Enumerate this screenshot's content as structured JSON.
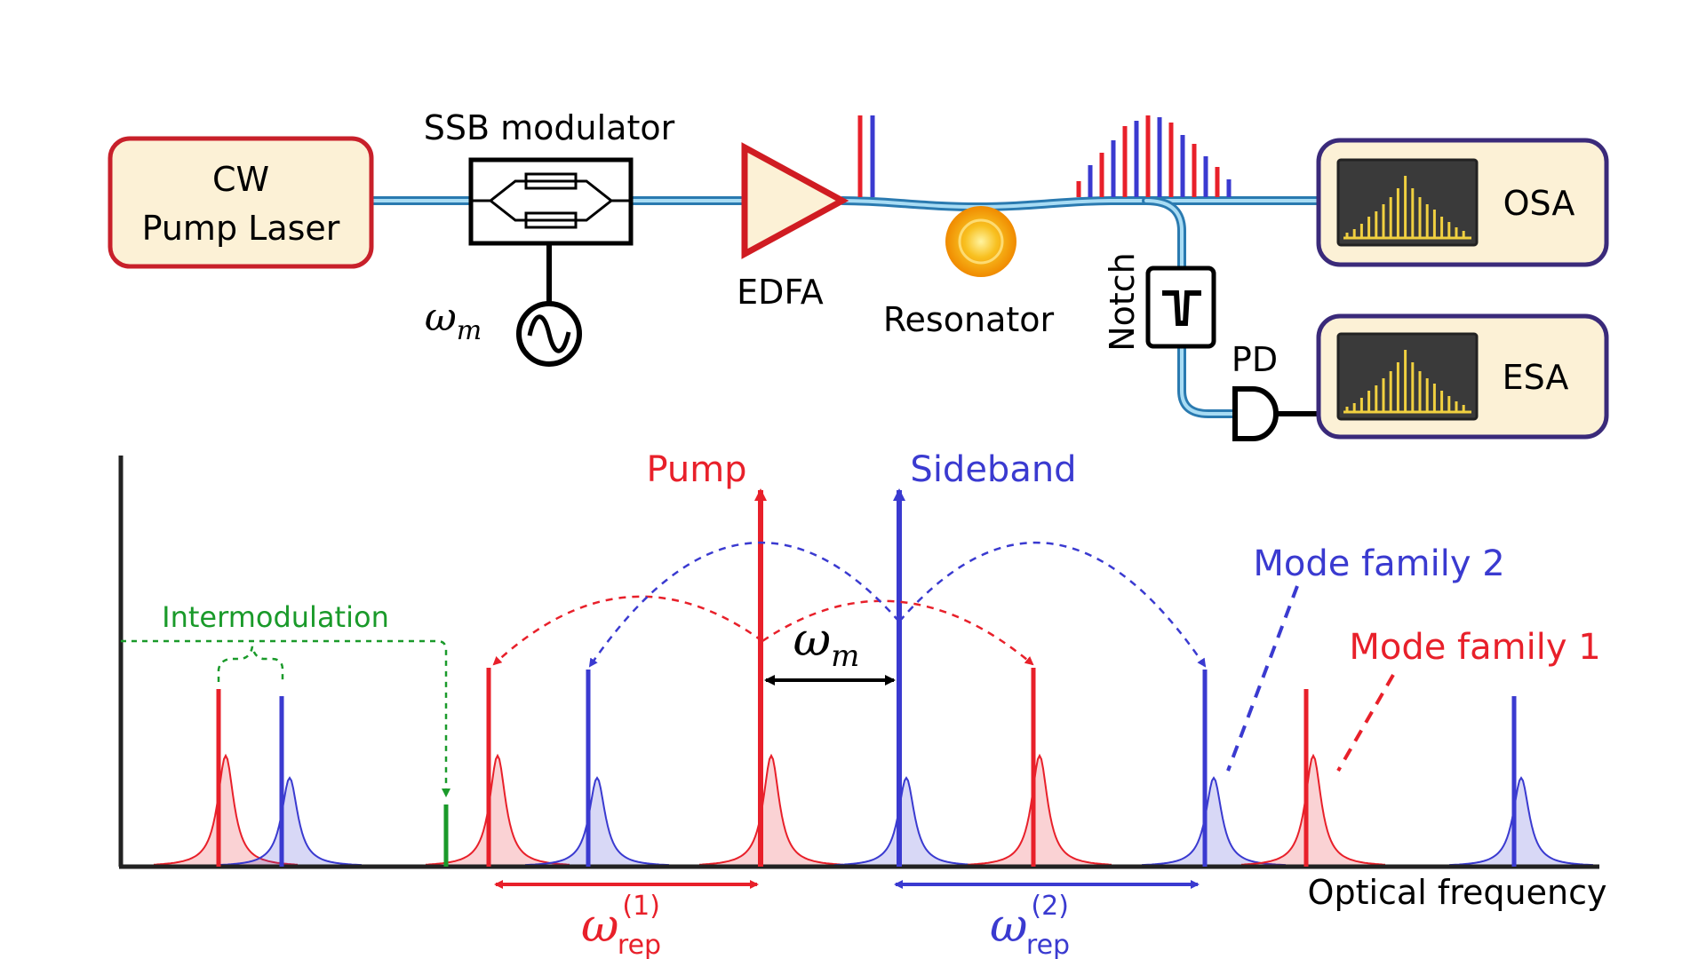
{
  "setup": {
    "cw_laser": {
      "line1": "CW",
      "line2": "Pump Laser"
    },
    "modulator": {
      "label": "SSB modulator",
      "drive_symbol": "ω",
      "drive_subscript": "m"
    },
    "amplifier": {
      "label": "EDFA"
    },
    "resonator": {
      "label": "Resonator"
    },
    "notch": {
      "label": "Notch"
    },
    "photodiode": {
      "label": "PD"
    },
    "osa": {
      "label": "OSA"
    },
    "esa": {
      "label": "ESA"
    }
  },
  "spectrum": {
    "pump_label": "Pump",
    "sideband_label": "Sideband",
    "mode_family_2_label": "Mode family 2",
    "mode_family_1_label": "Mode family 1",
    "intermodulation_label": "Intermodulation",
    "xaxis_label": "Optical frequency",
    "spacing_symbol": "ω",
    "spacing_subscript": "m",
    "rep1": {
      "symbol": "ω",
      "superscript": "(1)",
      "subscript": "rep"
    },
    "rep2": {
      "symbol": "ω",
      "superscript": "(2)",
      "subscript": "rep"
    }
  },
  "colors": {
    "red": "#e8202a",
    "blue": "#3a3ad0",
    "green": "#1a9a2a",
    "fiber": "#4a9cc8",
    "laser_border": "#c8202a",
    "box_fill": "#fcf1d6",
    "instrument_border": "#3a2a7a",
    "screen": "#3a3a3a",
    "screen_bars": "#f0d040"
  }
}
